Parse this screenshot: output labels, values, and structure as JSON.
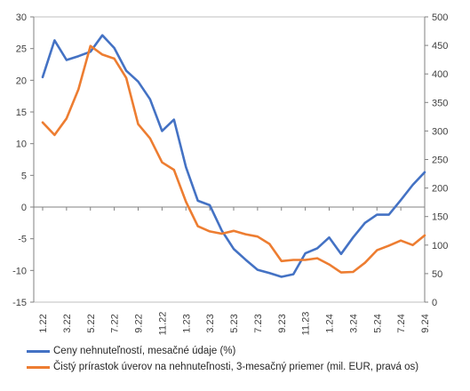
{
  "chart_data": {
    "type": "line",
    "x_labels": [
      "1.22",
      "3.22",
      "5.22",
      "7.22",
      "9.22",
      "11.22",
      "1.23",
      "3.23",
      "5.23",
      "7.23",
      "9.23",
      "11.23",
      "1.24",
      "3.24",
      "5.24",
      "7.24",
      "9.24"
    ],
    "y_left": {
      "min": -15,
      "max": 30,
      "ticks": [
        -15,
        -10,
        -5,
        0,
        5,
        10,
        15,
        20,
        25,
        30
      ]
    },
    "y_right": {
      "min": 0,
      "max": 500,
      "ticks": [
        0,
        50,
        100,
        150,
        200,
        250,
        300,
        350,
        400,
        450,
        500
      ]
    },
    "series": [
      {
        "name": "Ceny nehnuteľností, mesačné údaje (%)",
        "axis": "left",
        "color": "#4472C4",
        "values": [
          20.5,
          26.3,
          23.2,
          23.8,
          24.5,
          27.1,
          25.1,
          21.5,
          19.8,
          17.0,
          12.0,
          13.8,
          6.3,
          1.0,
          0.3,
          -3.7,
          -6.6,
          -8.3,
          -9.9,
          -10.4,
          -11.0,
          -10.6,
          -7.3,
          -6.5,
          -4.8,
          -7.4,
          -4.8,
          -2.5,
          -1.2,
          -1.2,
          1.1,
          3.5,
          5.5
        ]
      },
      {
        "name": "Čistý prírastok úverov na nehnuteľnosti, 3-mesačný priemer (mil. EUR, pravá os)",
        "axis": "right",
        "color": "#ED7D31",
        "values": [
          315,
          293,
          322,
          373,
          449,
          434,
          427,
          393,
          312,
          287,
          245,
          232,
          176,
          133,
          124,
          120,
          125,
          119,
          115,
          102,
          72,
          74,
          74,
          77,
          66,
          52,
          53,
          69,
          91,
          99,
          108,
          100,
          117
        ]
      }
    ]
  }
}
